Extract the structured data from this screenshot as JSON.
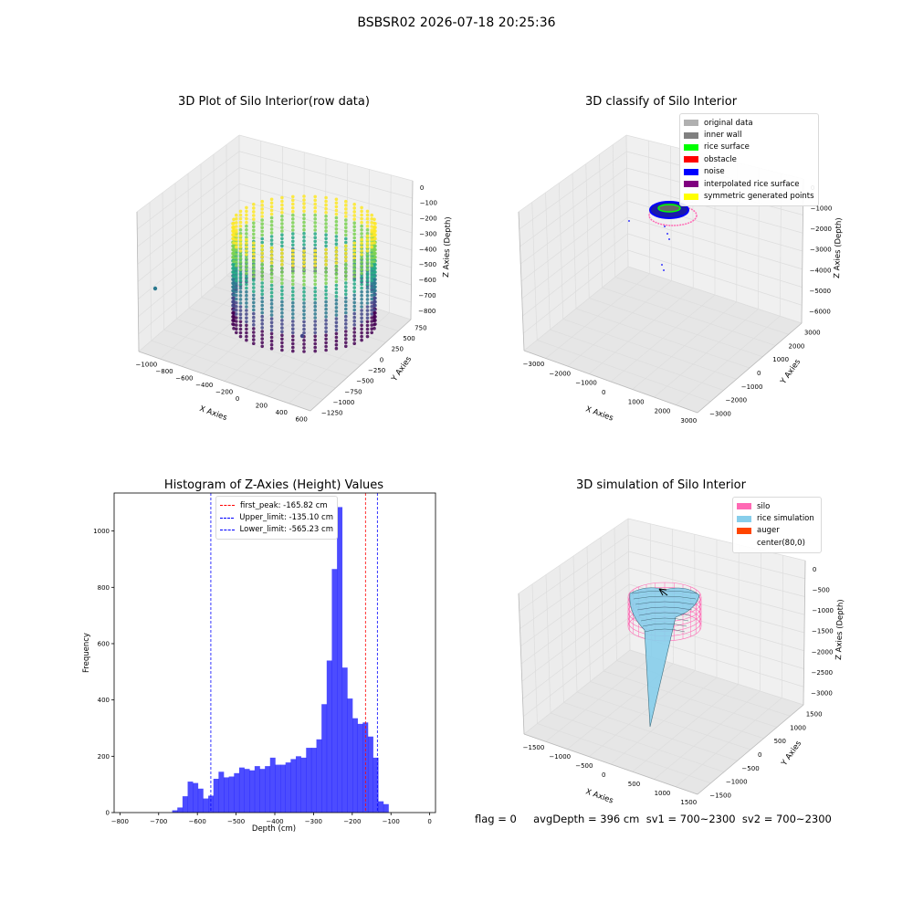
{
  "suptitle": "BSBSR02 2026-07-18 20:25:36",
  "panels": {
    "raw": {
      "title": "3D Plot of Silo Interior(row data)",
      "xlabel": "X Axies",
      "ylabel": "Y Axies",
      "zlabel": "Z Axies (Depth)",
      "xticks": [
        "−1000",
        "−800",
        "−600",
        "−400",
        "−200",
        "0",
        "200",
        "400",
        "600"
      ],
      "yticks": [
        "750",
        "500",
        "250",
        "0",
        "−250",
        "−500",
        "−750",
        "−1000",
        "−1250"
      ],
      "zticks": [
        "0",
        "−100",
        "−200",
        "−300",
        "−400",
        "−500",
        "−600",
        "−700",
        "−800"
      ]
    },
    "classify": {
      "title": "3D classify of Silo Interior",
      "xlabel": "X Axies",
      "ylabel": "Y Axies",
      "zlabel": "Z Axies (Depth)",
      "xticks": [
        "−3000",
        "−2000",
        "−1000",
        "0",
        "1000",
        "2000",
        "3000"
      ],
      "yticks": [
        "3000",
        "2000",
        "1000",
        "0",
        "−1000",
        "−2000",
        "−3000"
      ],
      "zticks": [
        "0",
        "−1000",
        "−2000",
        "−3000",
        "−4000",
        "−5000",
        "−6000"
      ],
      "legend": [
        {
          "label": "original data",
          "color": "#b0b0b0"
        },
        {
          "label": "inner wall",
          "color": "#808080"
        },
        {
          "label": "rice surface",
          "color": "#00ff00"
        },
        {
          "label": "obstacle",
          "color": "#ff0000"
        },
        {
          "label": "noise",
          "color": "#0000ff"
        },
        {
          "label": "interpolated rice surface",
          "color": "#800080"
        },
        {
          "label": "symmetric generated points",
          "color": "#ffff00"
        }
      ]
    },
    "simulation": {
      "title": "3D simulation of Silo Interior",
      "xlabel": "X Axies",
      "ylabel": "Y Axies",
      "zlabel": "Z Axies (Depth)",
      "xticks": [
        "−1500",
        "−1000",
        "−500",
        "0",
        "500",
        "1000",
        "1500"
      ],
      "yticks": [
        "1500",
        "1000",
        "500",
        "0",
        "−500",
        "−1000",
        "−1500"
      ],
      "zticks": [
        "0",
        "−500",
        "−1000",
        "−1500",
        "−2000",
        "−2500",
        "−3000"
      ],
      "legend": [
        {
          "label": "silo",
          "color": "#ff69b4"
        },
        {
          "label": "rice simulation",
          "color": "#87ceeb"
        },
        {
          "label": "auger",
          "color": "#ff4500"
        },
        {
          "label": "center(80,0)",
          "color": "none"
        }
      ]
    }
  },
  "chart_data": {
    "type": "bar",
    "title": "Histogram of Z-Axies (Height) Values",
    "xlabel": "Depth (cm)",
    "ylabel": "Frequency",
    "xlim": [
      -815,
      15
    ],
    "ylim": [
      0,
      1135
    ],
    "xticks": [
      -800,
      -700,
      -600,
      -500,
      -400,
      -300,
      -200,
      -100,
      0
    ],
    "yticks": [
      0,
      200,
      400,
      600,
      800,
      1000
    ],
    "bin_edges": [
      -665,
      -651.7,
      -638.4,
      -625.1,
      -611.8,
      -598.5,
      -585.2,
      -571.9,
      -558.6,
      -545.3,
      -532,
      -518.7,
      -505.4,
      -492.1,
      -478.8,
      -465.5,
      -452.2,
      -438.9,
      -425.6,
      -412.3,
      -399,
      -385.7,
      -372.4,
      -359.1,
      -345.8,
      -332.5,
      -319.2,
      -305.9,
      -292.6,
      -279.3,
      -266,
      -252.7,
      -239.4,
      -226.1,
      -212.8,
      -199.5,
      -186.2,
      -172.9,
      -159.6,
      -146.3,
      -133,
      -119.7,
      -106.4,
      -93.1,
      -79.8,
      -66.5,
      -53.2,
      -39.9,
      -26.6,
      -13.3
    ],
    "counts": [
      8,
      18,
      58,
      110,
      105,
      85,
      50,
      60,
      120,
      145,
      125,
      128,
      140,
      160,
      155,
      150,
      165,
      155,
      165,
      195,
      170,
      170,
      178,
      190,
      200,
      195,
      230,
      230,
      260,
      385,
      540,
      865,
      1085,
      515,
      405,
      335,
      315,
      320,
      270,
      195,
      40,
      30,
      0,
      0,
      0,
      0,
      0,
      0,
      0
    ],
    "bar_color": "#0000ff",
    "vlines": [
      {
        "label": "first_peak: -165.82 cm",
        "x": -165.82,
        "color": "#ff0000"
      },
      {
        "label": "Upper_limit: -135.10 cm",
        "x": -135.1,
        "color": "#0000ff"
      },
      {
        "label": "Lower_limit: -565.23 cm",
        "x": -565.23,
        "color": "#0000ff"
      }
    ],
    "legend_position": "top-center"
  },
  "footer": "flag = 0     avgDepth = 396 cm  sv1 = 700~2300  sv2 = 700~2300"
}
